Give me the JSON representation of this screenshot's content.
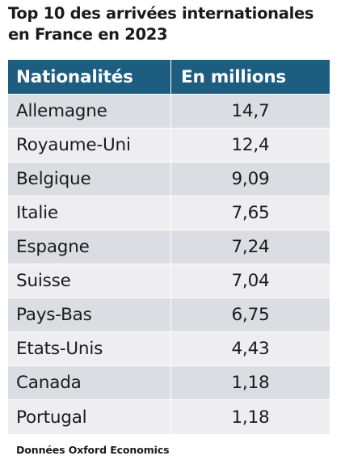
{
  "title_line1": "Top 10 des arrivées internationales",
  "title_line2": "en France en 2023",
  "source": "Données Oxford Economics",
  "chart_data": {
    "type": "table",
    "columns": [
      "Nationalités",
      "En millions"
    ],
    "rows": [
      {
        "name": "Allemagne",
        "value": "14,7"
      },
      {
        "name": "Royaume-Uni",
        "value": "12,4"
      },
      {
        "name": "Belgique",
        "value": "9,09"
      },
      {
        "name": "Italie",
        "value": "7,65"
      },
      {
        "name": "Espagne",
        "value": "7,24"
      },
      {
        "name": "Suisse",
        "value": "7,04"
      },
      {
        "name": "Pays-Bas",
        "value": "6,75"
      },
      {
        "name": "Etats-Unis",
        "value": "4,43"
      },
      {
        "name": "Canada",
        "value": "1,18"
      },
      {
        "name": "Portugal",
        "value": "1,18"
      }
    ]
  },
  "colors": {
    "header_bg": "#1d5d80",
    "row_dark": "#dcdde2",
    "row_light": "#eeeef1"
  }
}
